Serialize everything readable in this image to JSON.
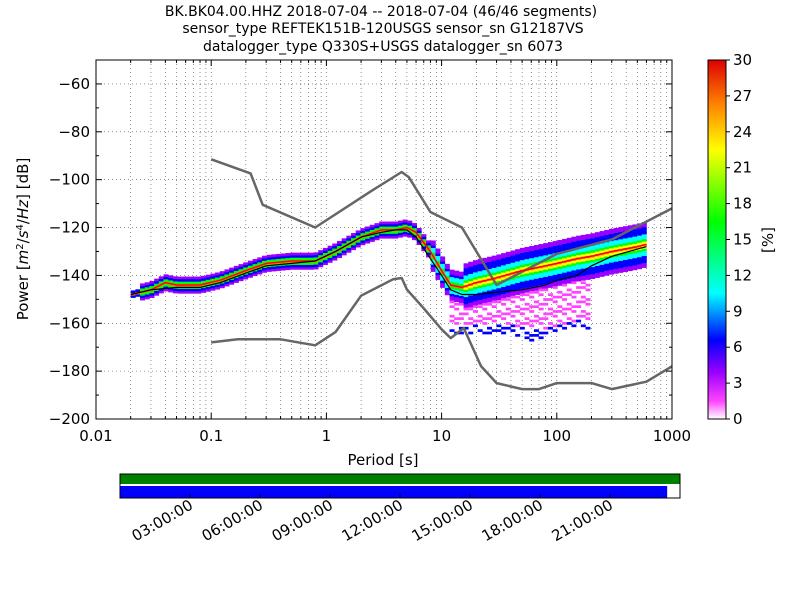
{
  "title_lines": [
    "BK.BK04.00.HHZ   2018-07-04 -- 2018-07-04  (46/46 segments)",
    "sensor_type REFTEK151B-120USGS sensor_sn G12187VS",
    "datalogger_type Q330S+USGS datalogger_sn 6073"
  ],
  "chart_data": [
    {
      "type": "heatmap",
      "xlabel": "Period [s]",
      "ylabel_parts": [
        "Power [",
        "m",
        "2",
        "/",
        "s",
        "4",
        "/",
        "Hz",
        "] [dB]"
      ],
      "x_scale": "log",
      "xlim": [
        0.01,
        1000
      ],
      "ylim": [
        -200,
        -50
      ],
      "x_ticks": [
        0.01,
        0.1,
        1,
        10,
        100,
        1000
      ],
      "x_tick_labels": [
        "0.01",
        "0.1",
        "1",
        "10",
        "100",
        "1000"
      ],
      "y_ticks": [
        -200,
        -180,
        -160,
        -140,
        -120,
        -100,
        -80,
        -60
      ],
      "y_tick_labels": [
        "−200",
        "−180",
        "−160",
        "−140",
        "−120",
        "−100",
        "−80",
        "−60"
      ],
      "grid": "dotted, vertical",
      "colorbar": {
        "label": "[%]",
        "min": 0,
        "max": 30,
        "ticks": [
          0,
          3,
          6,
          9,
          12,
          15,
          18,
          21,
          24,
          27,
          30
        ],
        "tick_labels": [
          "0",
          "3",
          "6",
          "9",
          "12",
          "15",
          "18",
          "21",
          "24",
          "27",
          "30"
        ]
      },
      "noise_model_high": {
        "color": "#666666",
        "x": [
          0.1,
          0.22,
          0.28,
          0.8,
          2.5,
          4.5,
          5.2,
          8,
          15,
          30,
          100,
          300,
          1000
        ],
        "y": [
          -91.5,
          -97.4,
          -110.5,
          -120,
          -104.5,
          -96.8,
          -99,
          -113.5,
          -120,
          -144,
          -131,
          -125,
          -112
        ]
      },
      "noise_model_low": {
        "color": "#666666",
        "x": [
          0.1,
          0.17,
          0.4,
          0.8,
          1.2,
          2,
          3.8,
          4.5,
          5,
          7,
          10,
          12,
          15.6,
          22,
          30,
          50,
          70,
          100,
          200,
          300,
          600,
          1000
        ],
        "y": [
          -168,
          -166.7,
          -166.7,
          -169.2,
          -163.7,
          -148.5,
          -141.6,
          -141.1,
          -145.9,
          -153.8,
          -162.5,
          -166.2,
          -162,
          -177.9,
          -185,
          -187.5,
          -187.5,
          -185,
          -185,
          -187.5,
          -184.4,
          -178
        ]
      },
      "mean_curve": {
        "color": "#000000",
        "x": [
          0.02,
          0.03,
          0.05,
          0.08,
          0.12,
          0.2,
          0.3,
          0.5,
          0.8,
          1.2,
          2,
          3,
          4,
          5,
          6,
          8,
          10,
          12,
          15,
          20,
          30,
          50,
          80,
          100,
          150,
          200,
          300,
          500,
          600
        ],
        "y": [
          -148,
          -146,
          -145,
          -145,
          -143,
          -139,
          -136,
          -135,
          -134,
          -130,
          -124,
          -122,
          -121,
          -121,
          -124,
          -133,
          -140,
          -146,
          -148,
          -148,
          -147,
          -146,
          -144,
          -142,
          -140,
          -136,
          -132,
          -129,
          -128
        ]
      },
      "mode_curve": {
        "color": "#ff0000",
        "x": [
          0.02,
          0.03,
          0.04,
          0.05,
          0.08,
          0.12,
          0.2,
          0.3,
          0.5,
          0.8,
          1.2,
          2,
          3,
          4,
          5,
          6,
          8,
          10,
          12,
          15,
          20,
          30,
          50,
          80,
          100,
          150,
          200,
          300,
          500,
          600
        ],
        "y": [
          -148,
          -146,
          -143,
          -144,
          -144,
          -142,
          -138,
          -135,
          -134,
          -134,
          -130,
          -124,
          -121,
          -121,
          -120,
          -122,
          -130,
          -138,
          -144,
          -145,
          -143,
          -141,
          -138,
          -136,
          -135,
          -133,
          -132,
          -130,
          -128,
          -127
        ]
      }
    },
    {
      "type": "bar",
      "x_tick_labels": [
        "03:00:00",
        "06:00:00",
        "09:00:00",
        "12:00:00",
        "15:00:00",
        "18:00:00",
        "21:00:00"
      ],
      "x_tick_hours": [
        3,
        6,
        9,
        12,
        15,
        18,
        21
      ],
      "x_range_hours": [
        0,
        24
      ],
      "series": [
        {
          "color": "#008000",
          "coverage_hours": [
            0,
            24
          ]
        },
        {
          "color": "#0000ff",
          "coverage_hours": [
            0,
            23.45
          ]
        }
      ]
    }
  ]
}
